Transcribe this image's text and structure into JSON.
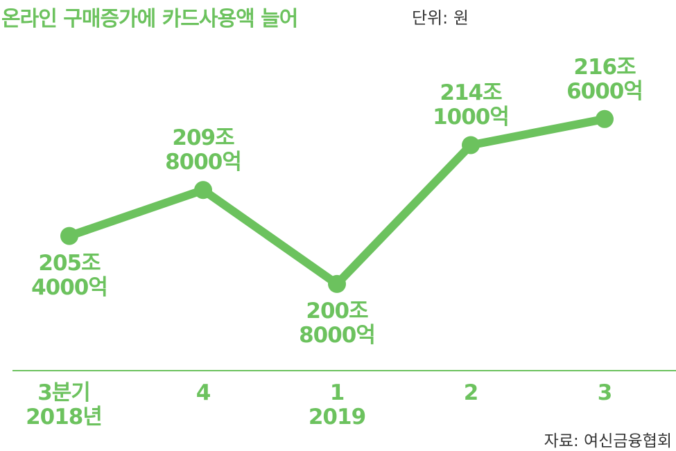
{
  "chart_data": {
    "type": "line",
    "title": "온라인 구매증가에 카드사용액 늘어",
    "subtitle": "단위: 원",
    "source": "자료: 여신금융협회",
    "categories": [
      "3분기\n2018년",
      "4",
      "1\n2019",
      "2",
      "3"
    ],
    "values": [
      205.4,
      209.8,
      200.8,
      214.1,
      216.6
    ],
    "value_labels": [
      "205조\n4000억",
      "209조\n8000억",
      "200조\n8000억",
      "214조\n1000억",
      "216조\n6000억"
    ],
    "color": "#6cc25e",
    "ylim": [
      192.5,
      228
    ]
  }
}
